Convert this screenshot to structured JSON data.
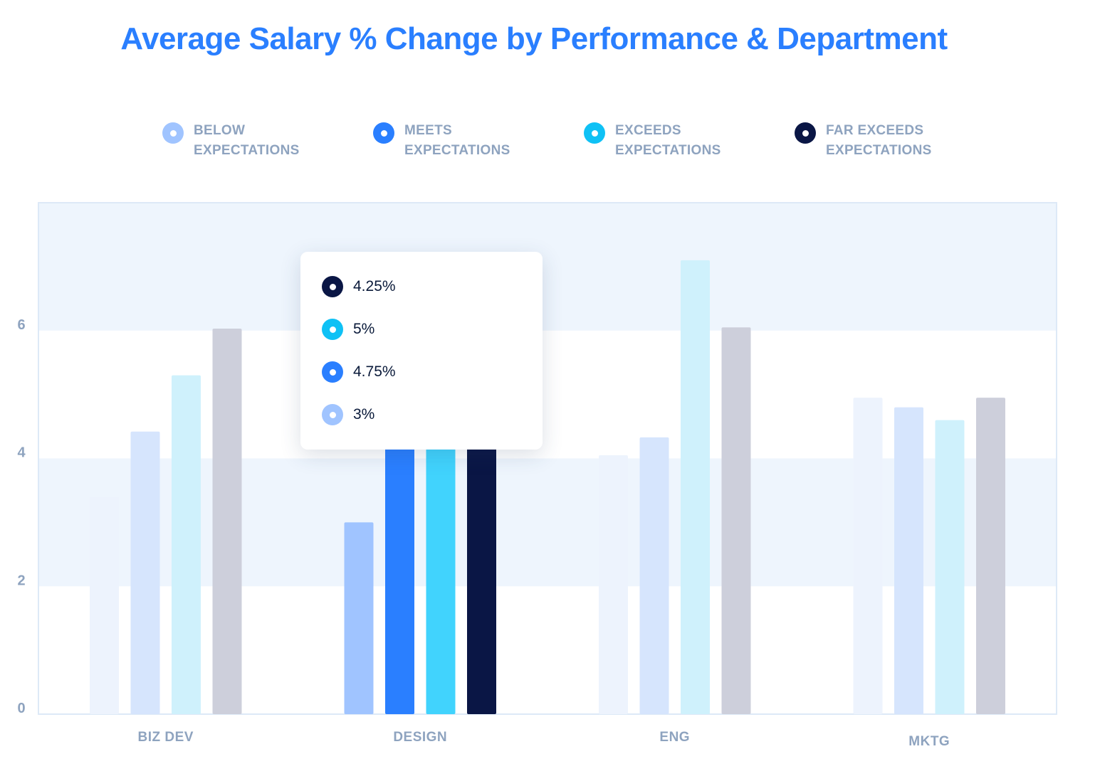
{
  "title": "Average Salary % Change by Performance & Department",
  "legend": [
    {
      "line1": "BELOW",
      "line2": "EXPECTATIONS",
      "color": "#a0c4ff"
    },
    {
      "line1": "MEETS",
      "line2": "EXPECTATIONS",
      "color": "#2a7fff"
    },
    {
      "line1": "EXCEEDS",
      "line2": "EXPECTATIONS",
      "color": "#0fc1f5"
    },
    {
      "line1": "FAR EXCEEDS",
      "line2": "EXPECTATIONS",
      "color": "#0a1645"
    }
  ],
  "tooltip": {
    "items": [
      {
        "label": "4.25%",
        "color": "#0a1645"
      },
      {
        "label": "5%",
        "color": "#0fc1f5"
      },
      {
        "label": "4.75%",
        "color": "#2a7fff"
      },
      {
        "label": "3%",
        "color": "#a0c4ff"
      }
    ]
  },
  "chart_data": {
    "type": "bar",
    "title": "Average Salary % Change by Performance & Department",
    "categories": [
      "BIZ DEV",
      "DESIGN",
      "ENG",
      "MKTG"
    ],
    "series": [
      {
        "name": "BELOW EXPECTATIONS",
        "values": [
          3.4,
          3,
          4.05,
          4.95
        ]
      },
      {
        "name": "MEETS EXPECTATIONS",
        "values": [
          4.42,
          4.75,
          4.33,
          4.8
        ]
      },
      {
        "name": "EXCEEDS EXPECTATIONS",
        "values": [
          5.3,
          5,
          7.1,
          4.6
        ]
      },
      {
        "name": "FAR EXCEEDS EXPECTATIONS",
        "values": [
          6.03,
          4.25,
          6.05,
          4.95
        ]
      }
    ],
    "yticks": [
      0,
      2,
      4,
      6
    ],
    "ylim": [
      0,
      8
    ],
    "highlighted_category": "DESIGN",
    "colors": {
      "active": [
        "#a0c4ff",
        "#2a7fff",
        "#41d3fd",
        "#0a1645"
      ],
      "muted": [
        "#edf3fd",
        "#d6e5fd",
        "#cff1fc",
        "#cdcfdb"
      ],
      "band": "#eef5fd",
      "frame": "#dde9f7",
      "tick_label": "#8ea3bf"
    }
  }
}
